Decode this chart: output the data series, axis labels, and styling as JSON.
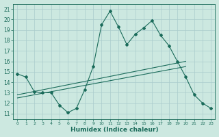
{
  "xlabel": "Humidex (Indice chaleur)",
  "bg_color": "#cce8e0",
  "grid_color": "#aacccc",
  "line_color": "#1a6b5a",
  "xlim": [
    -0.5,
    23.5
  ],
  "ylim": [
    10.5,
    21.5
  ],
  "yticks": [
    11,
    12,
    13,
    14,
    15,
    16,
    17,
    18,
    19,
    20,
    21
  ],
  "xticks": [
    0,
    1,
    2,
    3,
    4,
    5,
    6,
    7,
    8,
    9,
    10,
    11,
    12,
    13,
    14,
    15,
    16,
    17,
    18,
    19,
    20,
    21,
    22,
    23
  ],
  "line1_x": [
    0,
    1,
    2,
    3,
    4,
    5,
    6,
    7,
    8,
    9,
    10,
    11,
    12,
    13,
    14,
    15,
    16,
    17,
    18,
    19,
    20,
    21,
    22,
    23
  ],
  "line1_y": [
    14.8,
    14.5,
    13.1,
    13.0,
    13.0,
    11.8,
    11.1,
    11.5,
    13.3,
    15.5,
    19.5,
    20.8,
    19.3,
    17.6,
    18.6,
    19.2,
    19.9,
    18.5,
    17.5,
    16.0,
    14.5,
    12.8,
    12.0,
    11.5
  ],
  "line2_x": [
    0,
    20
  ],
  "line2_y": [
    12.8,
    16.0
  ],
  "line3_x": [
    0,
    20
  ],
  "line3_y": [
    12.5,
    15.5
  ],
  "figwidth": 3.2,
  "figheight": 2.0,
  "dpi": 100
}
